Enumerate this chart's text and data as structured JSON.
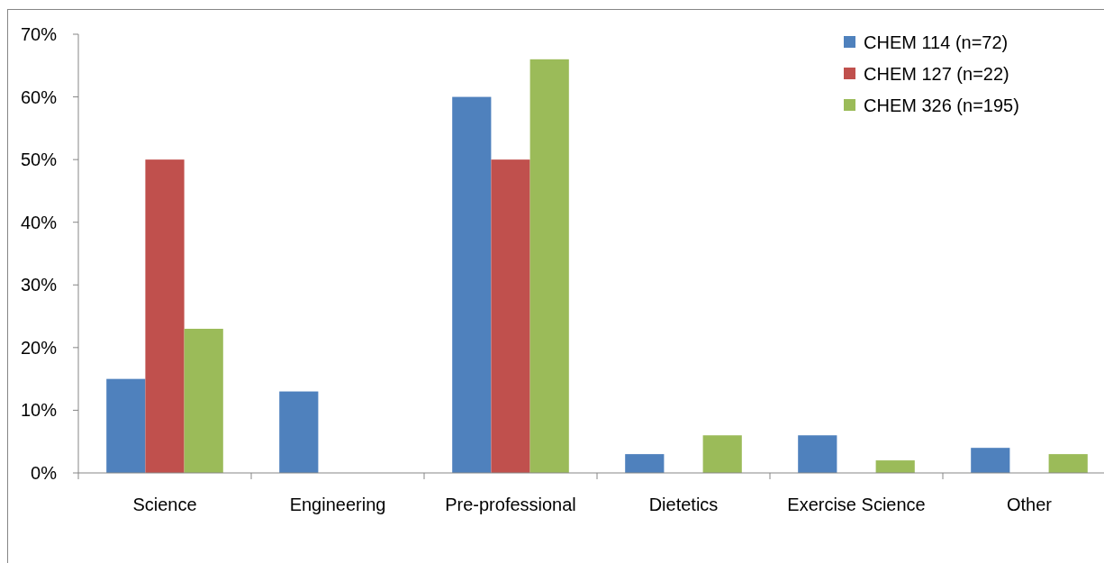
{
  "chart_data": {
    "type": "bar",
    "categories": [
      "Science",
      "Engineering",
      "Pre-professional",
      "Dietetics",
      "Exercise Science",
      "Other"
    ],
    "series": [
      {
        "name": "CHEM 114 (n=72)",
        "color": "#4f81bd",
        "values": [
          15,
          13,
          60,
          3,
          6,
          4
        ]
      },
      {
        "name": "CHEM 127 (n=22)",
        "color": "#c0504d",
        "values": [
          50,
          0,
          50,
          0,
          0,
          0
        ]
      },
      {
        "name": "CHEM 326 (n=195)",
        "color": "#9bbb59",
        "values": [
          23,
          0,
          66,
          6,
          2,
          3
        ]
      }
    ],
    "ylim": [
      0,
      70
    ],
    "yticks": [
      {
        "value": 0,
        "label": "0%"
      },
      {
        "value": 10,
        "label": "10%"
      },
      {
        "value": 20,
        "label": "20%"
      },
      {
        "value": 30,
        "label": "30%"
      },
      {
        "value": 40,
        "label": "40%"
      },
      {
        "value": 50,
        "label": "50%"
      },
      {
        "value": 60,
        "label": "60%"
      },
      {
        "value": 70,
        "label": "70%"
      }
    ],
    "grid": false,
    "legend": "top right"
  }
}
